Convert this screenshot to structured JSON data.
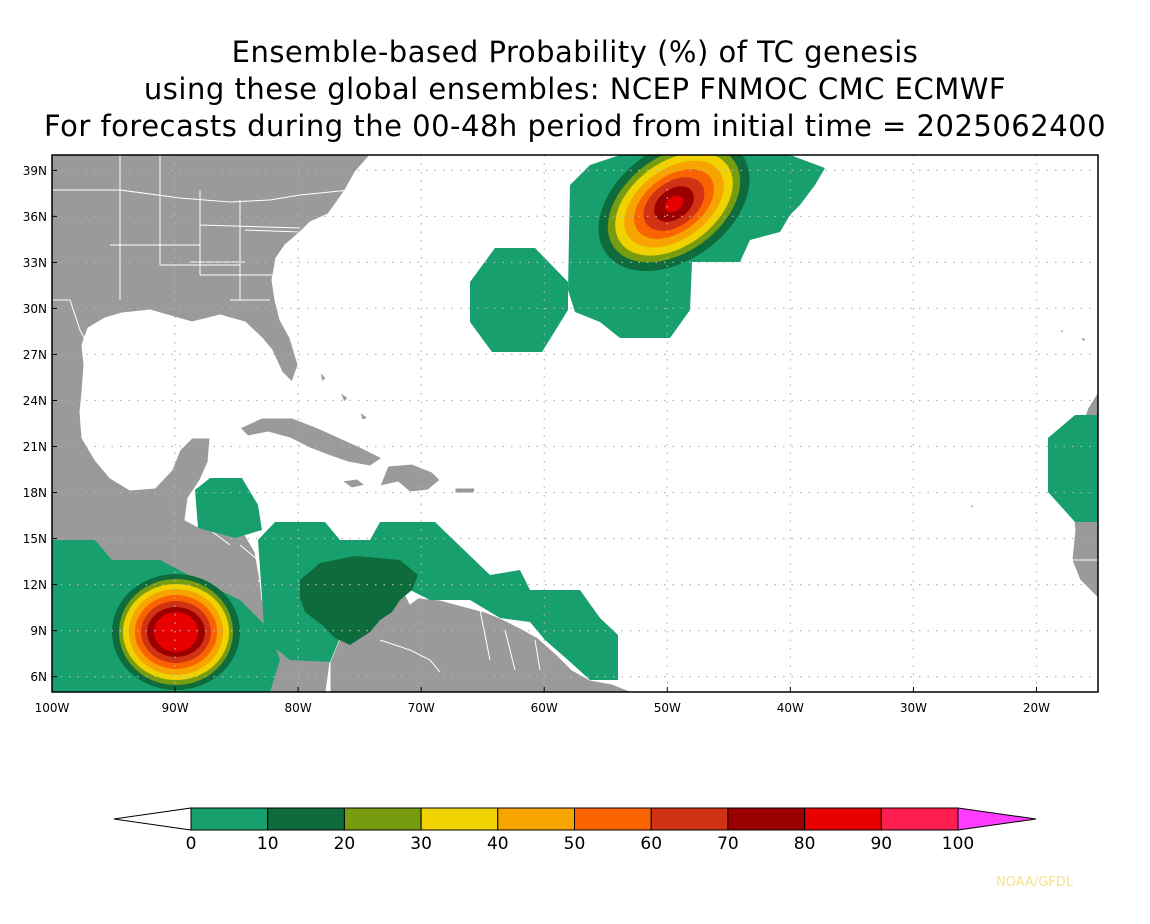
{
  "title": {
    "line1": "Ensemble-based Probability (%) of TC genesis",
    "line2": "using these global ensembles:   NCEP FNMOC CMC ECMWF",
    "line3": "For forecasts during the 00-48h period from initial time = 2025062400"
  },
  "map": {
    "lon_range": [
      -100,
      -15
    ],
    "lat_range": [
      5,
      40
    ],
    "lat_labels": [
      "39N",
      "36N",
      "33N",
      "30N",
      "27N",
      "24N",
      "21N",
      "18N",
      "15N",
      "12N",
      "9N",
      "6N"
    ],
    "lon_labels": [
      "100W",
      "90W",
      "80W",
      "70W",
      "60W",
      "50W",
      "40W",
      "30W",
      "20W"
    ],
    "land_color": "#9a9a9a",
    "ocean_color": "#ffffff",
    "border_color": "#ffffff",
    "grid": "dotted"
  },
  "legend": {
    "tick_labels": [
      "0",
      "10",
      "20",
      "30",
      "40",
      "50",
      "60",
      "70",
      "80",
      "90",
      "100"
    ],
    "colors": [
      "#17a06e",
      "#0d6b3c",
      "#789c10",
      "#f0d200",
      "#f7a300",
      "#fa6400",
      "#d23214",
      "#9b0000",
      "#e60000",
      "#ff1e50"
    ],
    "under_color": "#ffffff",
    "over_color": "#ff3cff"
  },
  "probability_areas": [
    {
      "name": "western-atlantic-system",
      "center_lon": -49.5,
      "center_lat": 36.8,
      "peak_percent": 80
    },
    {
      "name": "eastern-pacific-system",
      "center_lon": -89.2,
      "center_lat": 8.8,
      "peak_percent": 90
    }
  ],
  "credit": "NOAA/GFDL"
}
